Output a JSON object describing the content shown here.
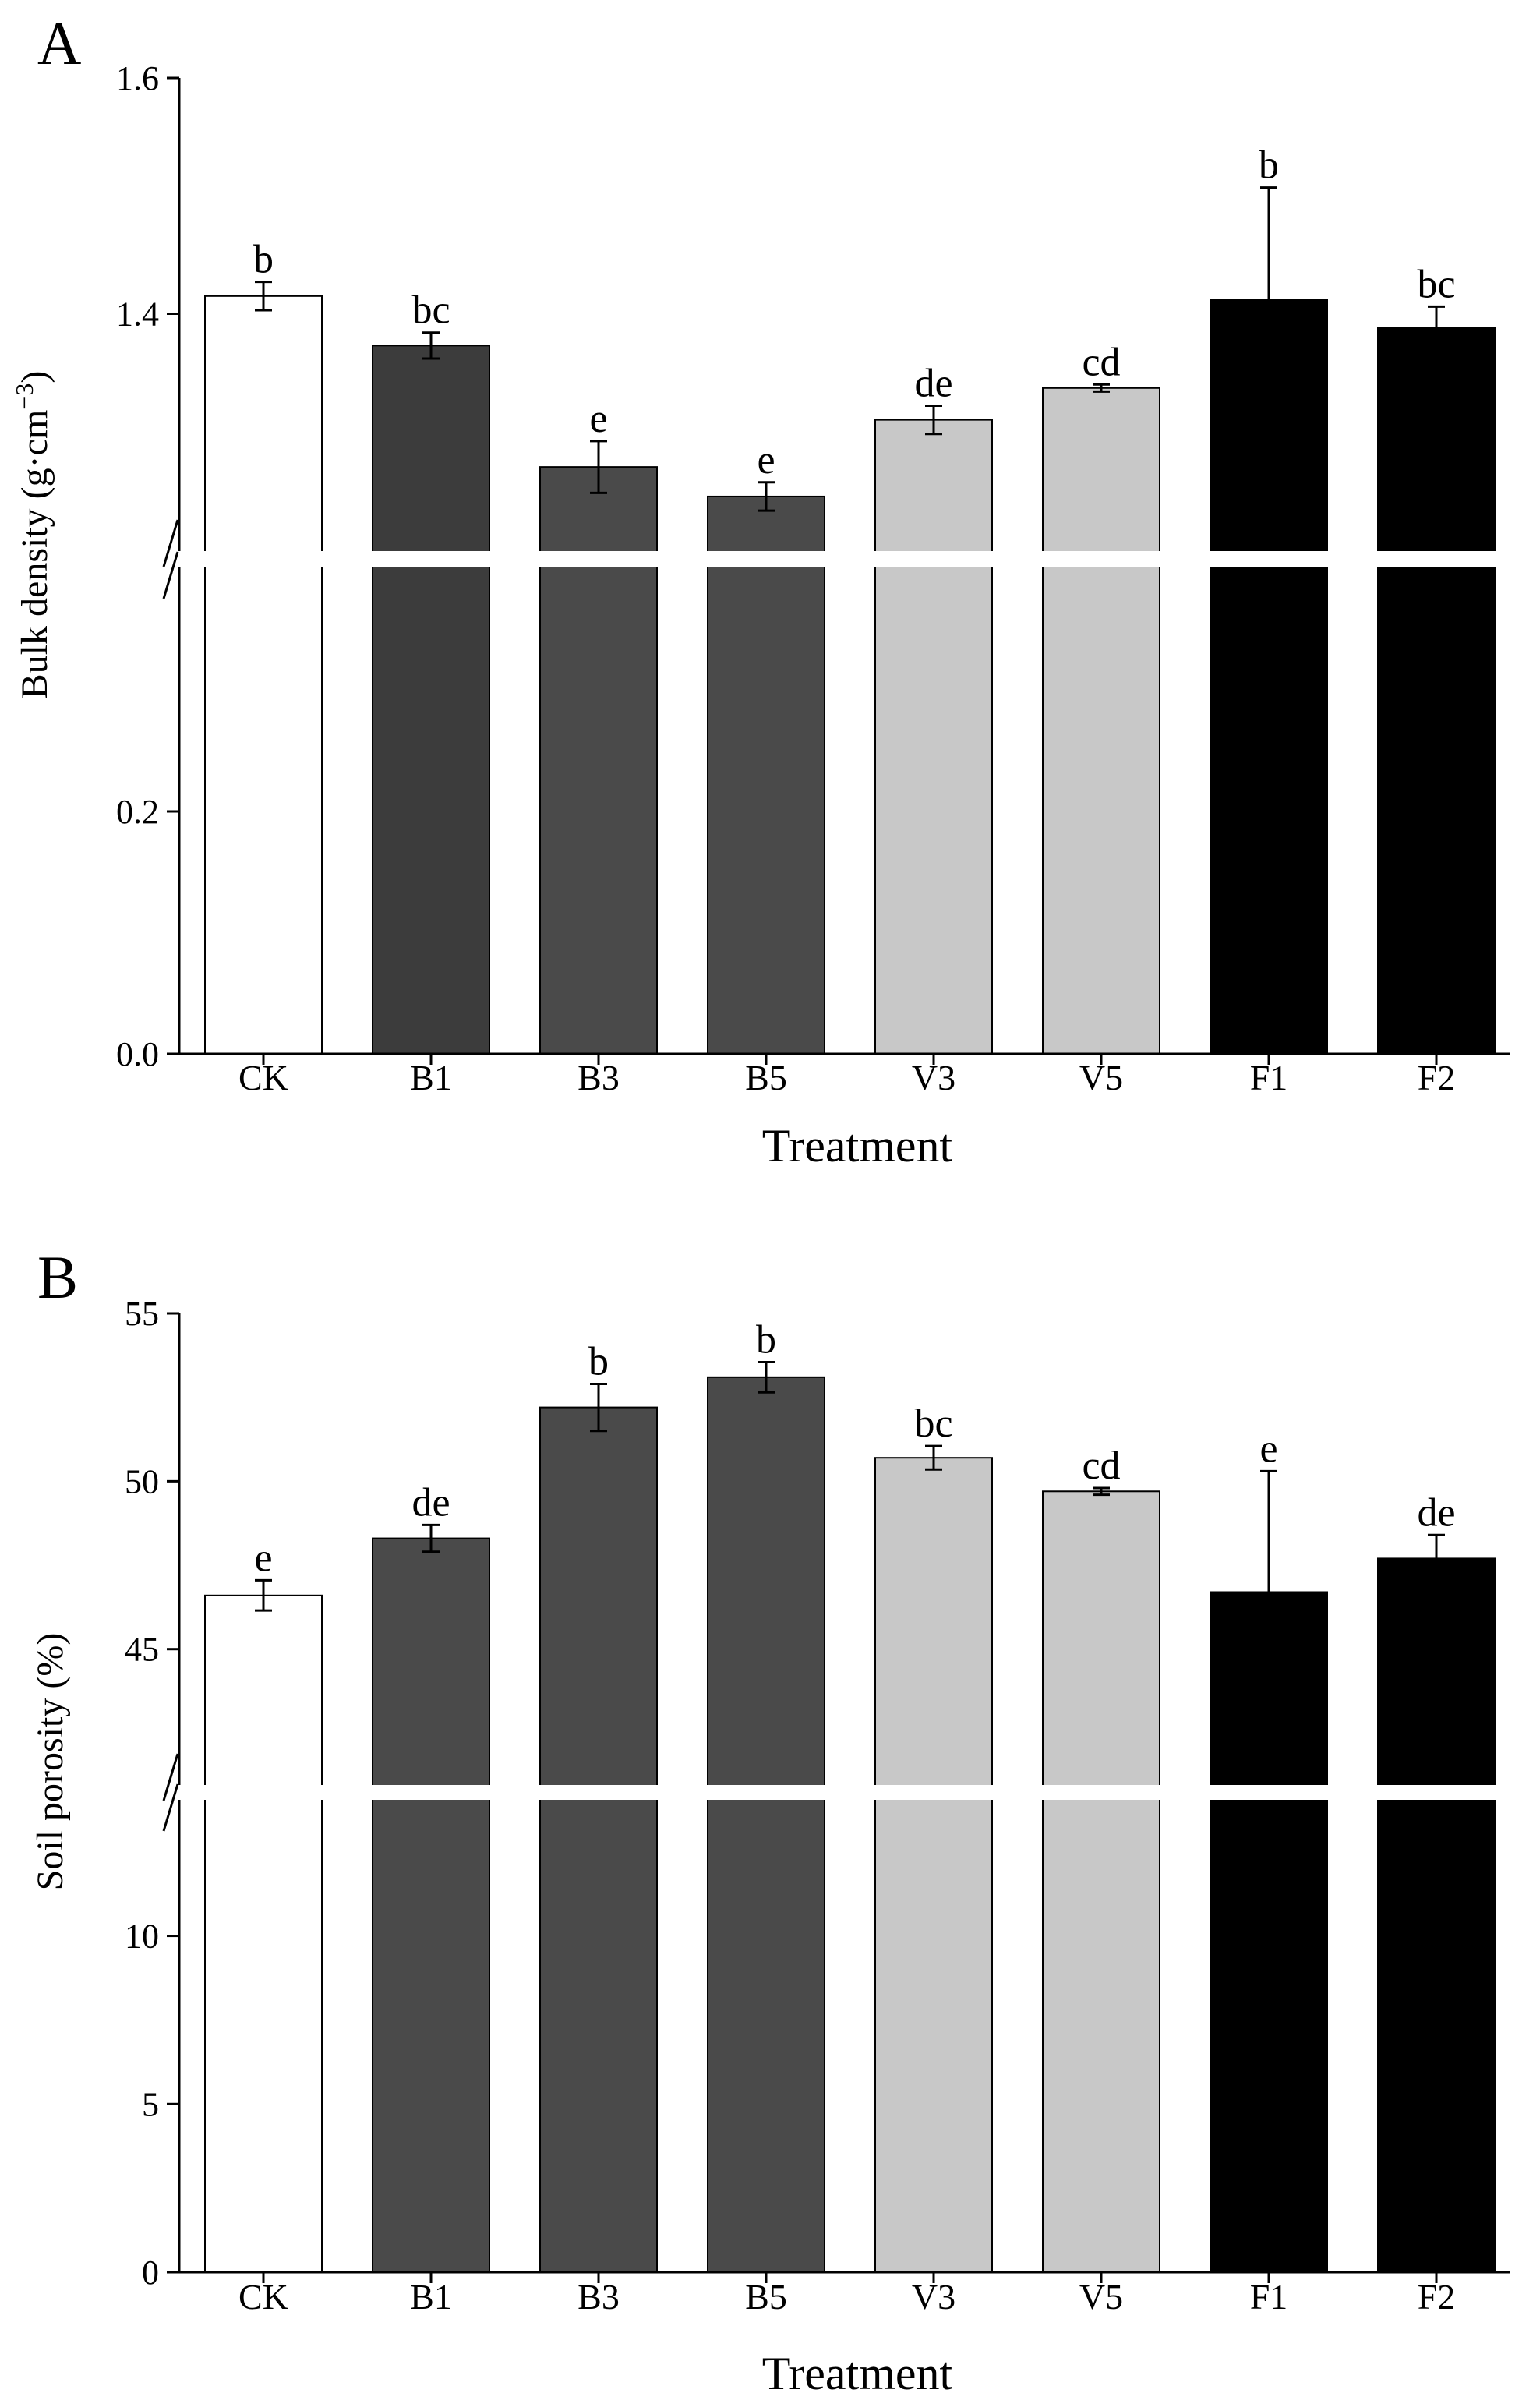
{
  "colors": {
    "axis": "#000000",
    "CK": "#ffffff",
    "B": "#4a4a4a",
    "B1": "#3c3c3c",
    "V": "#c8c8c8",
    "F": "#000000",
    "bar_outline": "#000000"
  },
  "chart_data": [
    {
      "type": "bar",
      "panel_label": "A",
      "xlabel": "Treatment",
      "ylabel": "Bulk density (g·cm⁻³)",
      "ylabel_base": "Bulk density (g·cm",
      "ylabel_sup": "−3",
      "ylabel_close": ")",
      "categories": [
        "CK",
        "B1",
        "B3",
        "B5",
        "V3",
        "V5",
        "F1",
        "F2"
      ],
      "values": [
        1.415,
        1.373,
        1.27,
        1.245,
        1.31,
        1.337,
        1.412,
        1.388
      ],
      "errors": [
        0.012,
        0.011,
        0.022,
        0.012,
        0.012,
        0.003,
        0.095,
        0.018
      ],
      "letters": [
        "b",
        "bc",
        "e",
        "e",
        "de",
        "cd",
        "b",
        "bc"
      ],
      "bar_colors": [
        "CK",
        "B1",
        "B",
        "B",
        "V",
        "V",
        "F",
        "F"
      ],
      "axis_break": {
        "lower_range": [
          0.0,
          0.4
        ],
        "upper_range": [
          1.2,
          1.6
        ]
      },
      "yticks": [
        {
          "value": 0.0,
          "label": "0.0"
        },
        {
          "value": 0.2,
          "label": "0.2"
        },
        {
          "value": 1.4,
          "label": "1.4"
        },
        {
          "value": 1.6,
          "label": "1.6"
        }
      ]
    },
    {
      "type": "bar",
      "panel_label": "B",
      "xlabel": "Treatment",
      "ylabel": "Soil porosity (%)",
      "categories": [
        "CK",
        "B1",
        "B3",
        "B5",
        "V3",
        "V5",
        "F1",
        "F2"
      ],
      "values": [
        46.6,
        48.3,
        52.2,
        53.1,
        50.7,
        49.7,
        46.7,
        47.7
      ],
      "errors": [
        0.45,
        0.4,
        0.7,
        0.45,
        0.35,
        0.1,
        3.6,
        0.7
      ],
      "letters": [
        "e",
        "de",
        "b",
        "b",
        "bc",
        "cd",
        "e",
        "de"
      ],
      "bar_colors": [
        "CK",
        "B",
        "B",
        "B",
        "V",
        "V",
        "F",
        "F"
      ],
      "axis_break": {
        "lower_range": [
          0,
          14
        ],
        "upper_range": [
          41,
          55
        ]
      },
      "yticks": [
        {
          "value": 0,
          "label": "0"
        },
        {
          "value": 5,
          "label": "5"
        },
        {
          "value": 10,
          "label": "10"
        },
        {
          "value": 45,
          "label": "45"
        },
        {
          "value": 50,
          "label": "50"
        },
        {
          "value": 55,
          "label": "55"
        }
      ]
    }
  ]
}
